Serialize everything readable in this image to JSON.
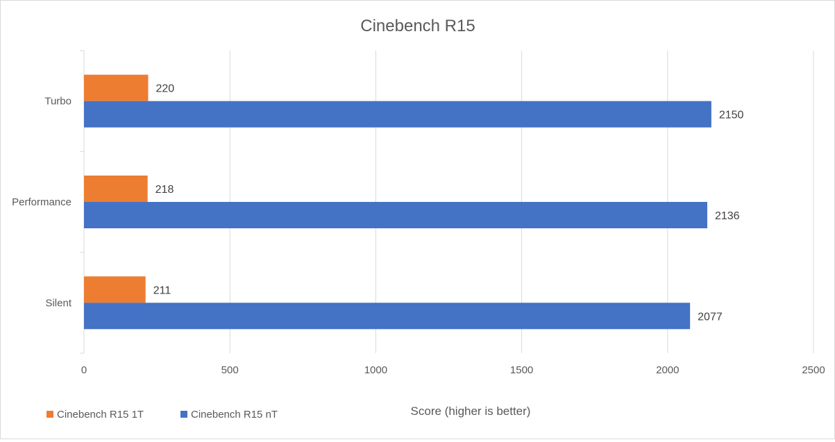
{
  "chart_data": {
    "type": "bar",
    "orientation": "horizontal",
    "title": "Cinebench R15",
    "xlabel": "Score (higher is better)",
    "ylabel": "",
    "categories": [
      "Turbo",
      "Performance",
      "Silent"
    ],
    "series": [
      {
        "name": "Cinebench R15 1T",
        "color": "#ed7d31",
        "values": [
          220,
          218,
          211
        ]
      },
      {
        "name": "Cinebench R15 nT",
        "color": "#4472c4",
        "values": [
          2150,
          2136,
          2077
        ]
      }
    ],
    "xlim": [
      0,
      2500
    ],
    "xticks": [
      0,
      500,
      1000,
      1500,
      2000,
      2500
    ],
    "grid": true,
    "legend": "bottom-left",
    "data_labels": true
  }
}
